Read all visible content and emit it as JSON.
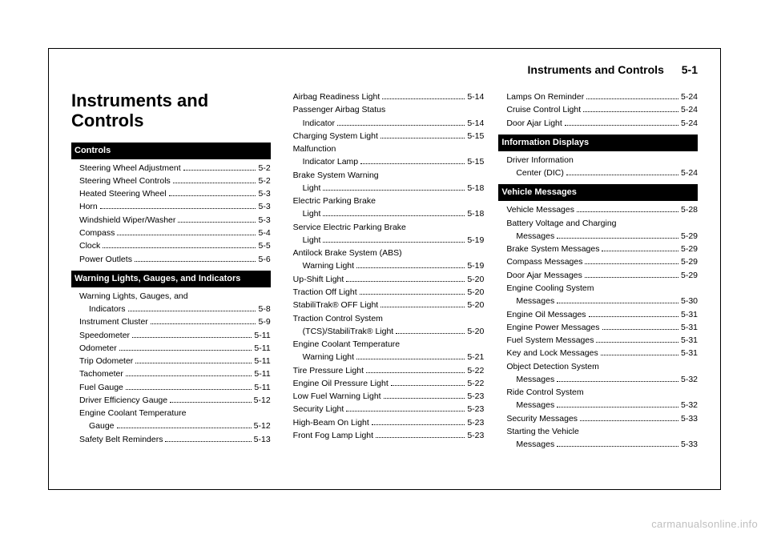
{
  "header": {
    "title": "Instruments and Controls",
    "pagenum": "5-1"
  },
  "chapter_title": "Instruments and Controls",
  "watermark": "carmanualsonline.info",
  "col1": {
    "sections": [
      {
        "bar": "Controls",
        "entries": [
          {
            "label": "Steering Wheel Adjustment",
            "pg": "5-2",
            "sub": true
          },
          {
            "label": "Steering Wheel Controls",
            "pg": "5-2",
            "sub": true
          },
          {
            "label": "Heated Steering Wheel",
            "pg": "5-3",
            "sub": true
          },
          {
            "label": "Horn",
            "pg": "5-3",
            "sub": true
          },
          {
            "label": "Windshield Wiper/Washer",
            "pg": "5-3",
            "sub": true
          },
          {
            "label": "Compass",
            "pg": "5-4",
            "sub": true
          },
          {
            "label": "Clock",
            "pg": "5-5",
            "sub": true
          },
          {
            "label": "Power Outlets",
            "pg": "5-6",
            "sub": true
          }
        ]
      },
      {
        "bar": "Warning Lights, Gauges, and Indicators",
        "entries": [
          {
            "label": "Warning Lights, Gauges, and",
            "cont": true,
            "sub": true
          },
          {
            "label": "Indicators",
            "pg": "5-8",
            "sub2": true
          },
          {
            "label": "Instrument Cluster",
            "pg": "5-9",
            "sub": true
          },
          {
            "label": "Speedometer",
            "pg": "5-11",
            "sub": true
          },
          {
            "label": "Odometer",
            "pg": "5-11",
            "sub": true
          },
          {
            "label": "Trip Odometer",
            "pg": "5-11",
            "sub": true
          },
          {
            "label": "Tachometer",
            "pg": "5-11",
            "sub": true
          },
          {
            "label": "Fuel Gauge",
            "pg": "5-11",
            "sub": true
          },
          {
            "label": "Driver Efficiency Gauge",
            "pg": "5-12",
            "sub": true
          },
          {
            "label": "Engine Coolant Temperature",
            "cont": true,
            "sub": true
          },
          {
            "label": "Gauge",
            "pg": "5-12",
            "sub2": true
          },
          {
            "label": "Safety Belt Reminders",
            "pg": "5-13",
            "sub": true
          }
        ]
      }
    ]
  },
  "col2": {
    "entries": [
      {
        "label": "Airbag Readiness Light",
        "pg": "5-14",
        "sub": true
      },
      {
        "label": "Passenger Airbag Status",
        "cont": true,
        "sub": true
      },
      {
        "label": "Indicator",
        "pg": "5-14",
        "sub2": true
      },
      {
        "label": "Charging System Light",
        "pg": "5-15",
        "sub": true
      },
      {
        "label": "Malfunction",
        "cont": true,
        "sub": true
      },
      {
        "label": "Indicator Lamp",
        "pg": "5-15",
        "sub2": true
      },
      {
        "label": "Brake System Warning",
        "cont": true,
        "sub": true
      },
      {
        "label": "Light",
        "pg": "5-18",
        "sub2": true
      },
      {
        "label": "Electric Parking Brake",
        "cont": true,
        "sub": true
      },
      {
        "label": "Light",
        "pg": "5-18",
        "sub2": true
      },
      {
        "label": "Service Electric Parking Brake",
        "cont": true,
        "sub": true
      },
      {
        "label": "Light",
        "pg": "5-19",
        "sub2": true
      },
      {
        "label": "Antilock Brake System (ABS)",
        "cont": true,
        "sub": true
      },
      {
        "label": "Warning Light",
        "pg": "5-19",
        "sub2": true
      },
      {
        "label": "Up-Shift Light",
        "pg": "5-20",
        "sub": true
      },
      {
        "label": "Traction Off Light",
        "pg": "5-20",
        "sub": true
      },
      {
        "label": "StabiliTrak® OFF Light",
        "pg": "5-20",
        "sub": true
      },
      {
        "label": "Traction Control System",
        "cont": true,
        "sub": true
      },
      {
        "label": "(TCS)/StabiliTrak® Light",
        "pg": "5-20",
        "sub2": true
      },
      {
        "label": "Engine Coolant Temperature",
        "cont": true,
        "sub": true
      },
      {
        "label": "Warning Light",
        "pg": "5-21",
        "sub2": true
      },
      {
        "label": "Tire Pressure Light",
        "pg": "5-22",
        "sub": true
      },
      {
        "label": "Engine Oil Pressure Light",
        "pg": "5-22",
        "sub": true
      },
      {
        "label": "Low Fuel Warning Light",
        "pg": "5-23",
        "sub": true
      },
      {
        "label": "Security Light",
        "pg": "5-23",
        "sub": true
      },
      {
        "label": "High-Beam On Light",
        "pg": "5-23",
        "sub": true
      },
      {
        "label": "Front Fog Lamp Light",
        "pg": "5-23",
        "sub": true
      }
    ]
  },
  "col3": {
    "pre_entries": [
      {
        "label": "Lamps On Reminder",
        "pg": "5-24",
        "sub": true
      },
      {
        "label": "Cruise Control Light",
        "pg": "5-24",
        "sub": true
      },
      {
        "label": "Door Ajar Light",
        "pg": "5-24",
        "sub": true
      }
    ],
    "sections": [
      {
        "bar": "Information Displays",
        "entries": [
          {
            "label": "Driver Information",
            "cont": true,
            "sub": true
          },
          {
            "label": "Center (DIC)",
            "pg": "5-24",
            "sub2": true
          }
        ]
      },
      {
        "bar": "Vehicle Messages",
        "entries": [
          {
            "label": "Vehicle Messages",
            "pg": "5-28",
            "sub": true
          },
          {
            "label": "Battery Voltage and Charging",
            "cont": true,
            "sub": true
          },
          {
            "label": "Messages",
            "pg": "5-29",
            "sub2": true
          },
          {
            "label": "Brake System Messages",
            "pg": "5-29",
            "sub": true
          },
          {
            "label": "Compass Messages",
            "pg": "5-29",
            "sub": true
          },
          {
            "label": "Door Ajar Messages",
            "pg": "5-29",
            "sub": true
          },
          {
            "label": "Engine Cooling System",
            "cont": true,
            "sub": true
          },
          {
            "label": "Messages",
            "pg": "5-30",
            "sub2": true
          },
          {
            "label": "Engine Oil Messages",
            "pg": "5-31",
            "sub": true
          },
          {
            "label": "Engine Power Messages",
            "pg": "5-31",
            "sub": true
          },
          {
            "label": "Fuel System Messages",
            "pg": "5-31",
            "sub": true
          },
          {
            "label": "Key and Lock Messages",
            "pg": "5-31",
            "sub": true
          },
          {
            "label": "Object Detection System",
            "cont": true,
            "sub": true
          },
          {
            "label": "Messages",
            "pg": "5-32",
            "sub2": true
          },
          {
            "label": "Ride Control System",
            "cont": true,
            "sub": true
          },
          {
            "label": "Messages",
            "pg": "5-32",
            "sub2": true
          },
          {
            "label": "Security Messages",
            "pg": "5-33",
            "sub": true
          },
          {
            "label": "Starting the Vehicle",
            "cont": true,
            "sub": true
          },
          {
            "label": "Messages",
            "pg": "5-33",
            "sub2": true
          }
        ]
      }
    ]
  }
}
